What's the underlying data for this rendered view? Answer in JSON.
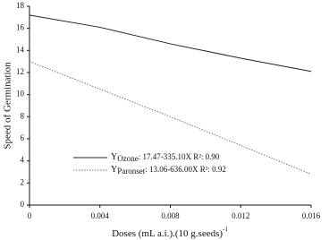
{
  "chart_data": {
    "type": "line",
    "xlabel": "Doses (mL a.i.).(10 g.seeds)",
    "xlabel_superscript": "-1",
    "ylabel": "Speed of Germination",
    "x": [
      0,
      0.004,
      0.008,
      0.012,
      0.016
    ],
    "series": [
      {
        "name": "Ozone",
        "color": "#222222",
        "dash": "solid",
        "equation": ": 17.47-335.10X  R²: 0.90",
        "values": [
          17.2,
          16.1,
          14.6,
          13.3,
          12.1
        ]
      },
      {
        "name": "Paronset",
        "color": "#777777",
        "dash": "dotted",
        "equation": ": 13.06-636.00X  R²: 0.92",
        "values": [
          13.0,
          10.5,
          8.0,
          5.4,
          2.8
        ]
      }
    ],
    "legend_symbol": "Y",
    "xlim": [
      0,
      0.016
    ],
    "xticks": [
      0,
      0.004,
      0.008,
      0.012,
      0.016
    ],
    "ylim": [
      0,
      18
    ],
    "yticks": [
      0,
      2,
      4,
      6,
      8,
      10,
      12,
      14,
      16,
      18
    ],
    "grid": false
  }
}
